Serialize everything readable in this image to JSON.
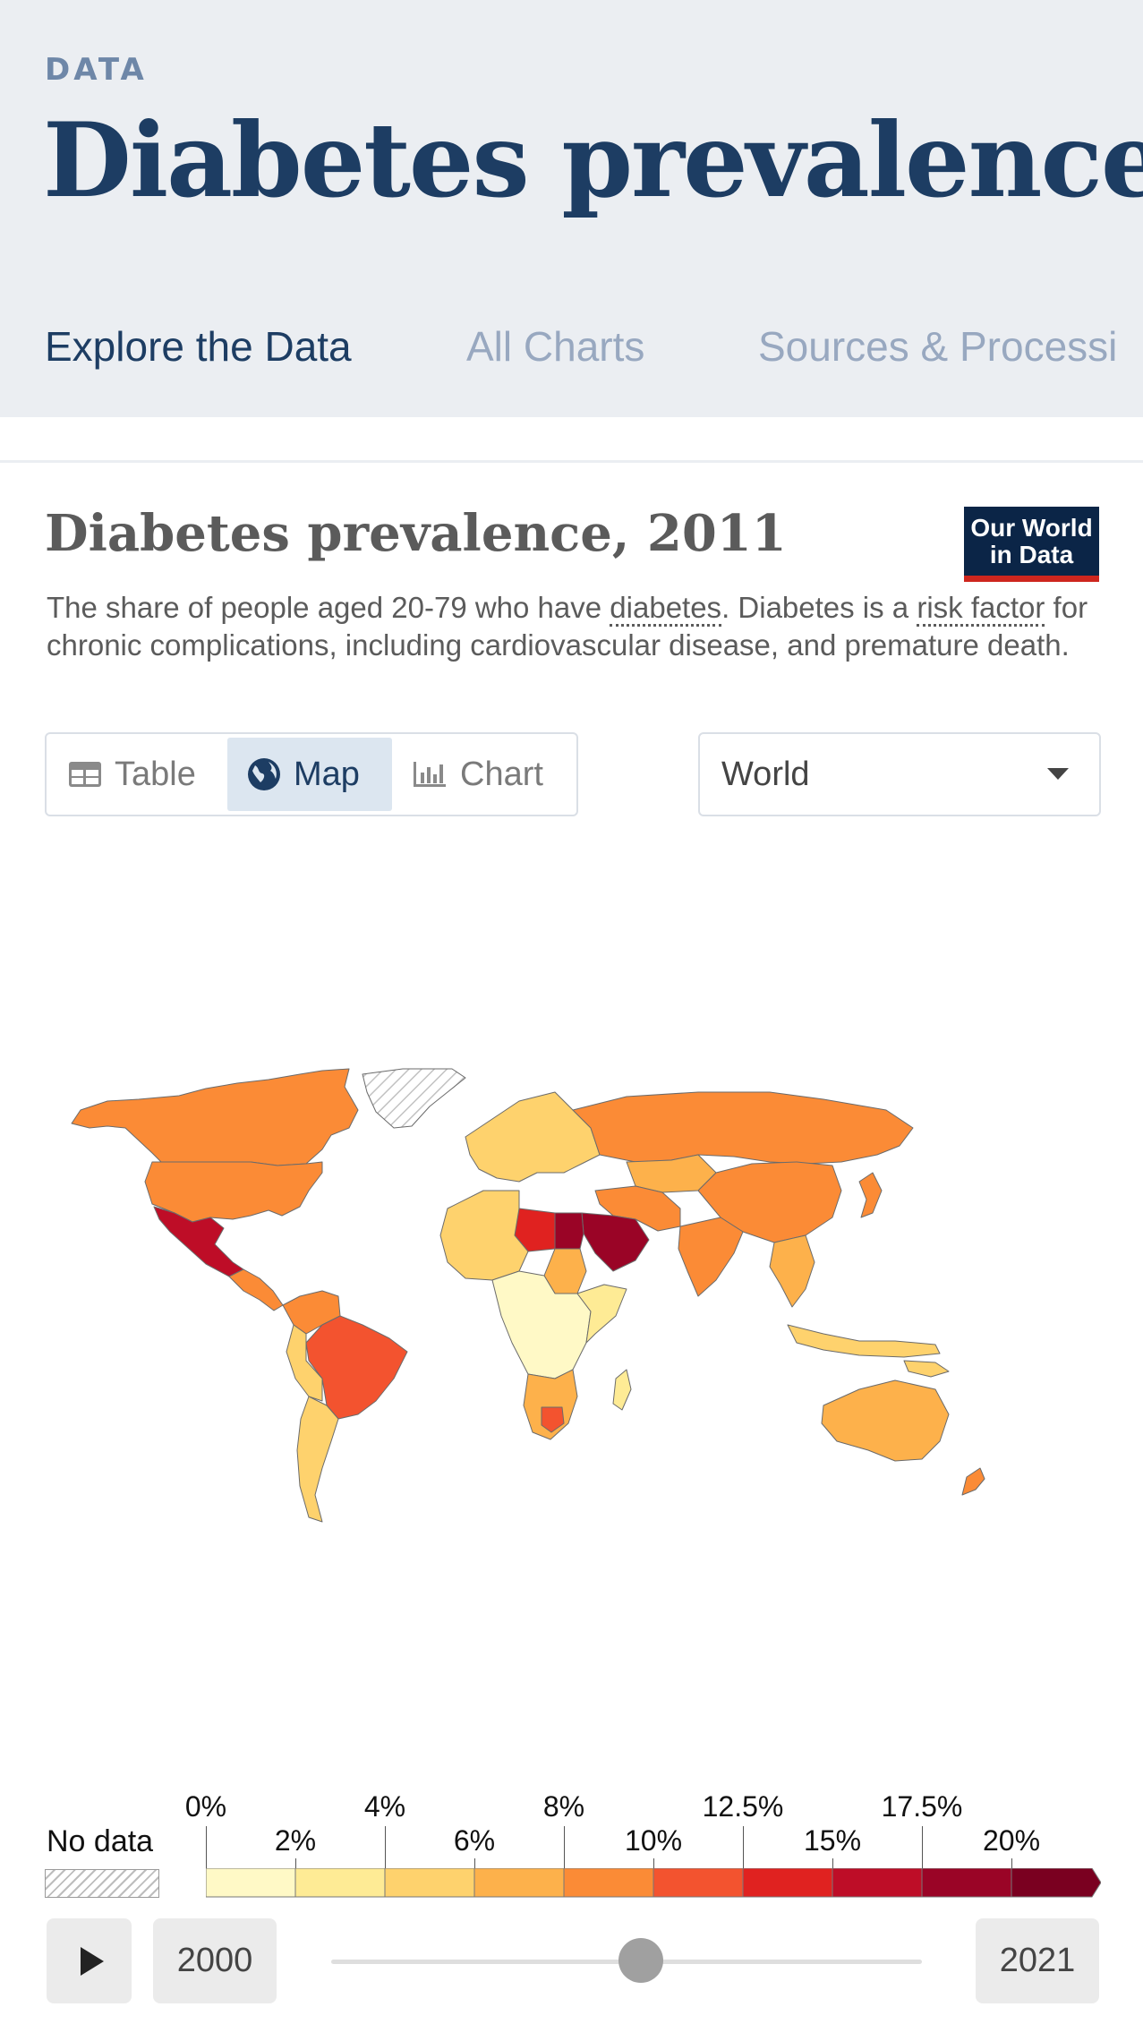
{
  "header": {
    "kicker": "DATA",
    "title": "Diabetes prevalence",
    "tabs": [
      {
        "label": "Explore the Data",
        "active": true
      },
      {
        "label": "All Charts",
        "active": false
      },
      {
        "label": "Sources & Processi",
        "active": false
      }
    ]
  },
  "chart": {
    "title": "Diabetes prevalence, 2011",
    "logo_line1": "Our World",
    "logo_line2": "in Data",
    "subtitle_parts": {
      "p1": "The share of people aged 20-79 who have ",
      "link1": "diabetes",
      "p2": ". Diabetes is a ",
      "link2": "risk factor",
      "p3": " for chronic complications, including cardiovascular disease, and premature death."
    },
    "view_tabs": {
      "table": "Table",
      "map": "Map",
      "chart": "Chart",
      "active": "Map"
    },
    "entity_selector": "World",
    "colors": {
      "accent": "#1d3d63",
      "logo_bg": "#0b2547",
      "logo_bar": "#ce261e"
    }
  },
  "legend": {
    "no_data_label": "No data",
    "bins_colors": [
      "#fff9c6",
      "#feeb95",
      "#fed26d",
      "#fdb14b",
      "#fb8b36",
      "#f3532f",
      "#e02220",
      "#be0d27",
      "#9a0426",
      "#7a0020"
    ],
    "labels_top": [
      "0%",
      "4%",
      "8%",
      "12.5%",
      "17.5%"
    ],
    "labels_bottom": [
      "2%",
      "6%",
      "10%",
      "15%",
      "20%"
    ]
  },
  "timeline": {
    "start_year": "2000",
    "end_year": "2021",
    "current_year": 2011
  }
}
